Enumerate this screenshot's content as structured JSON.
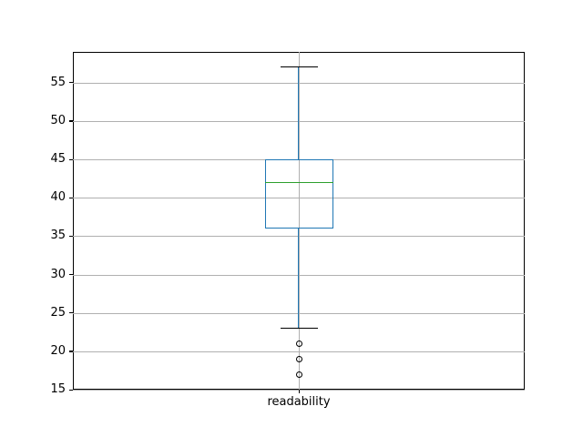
{
  "chart_data": {
    "type": "boxplot",
    "title": "",
    "xlabel": "",
    "ylabel": "",
    "categories": [
      "readability"
    ],
    "yticks": [
      15,
      20,
      25,
      30,
      35,
      40,
      45,
      50,
      55
    ],
    "ylim": [
      15,
      59
    ],
    "grid": true,
    "legend": false,
    "series": [
      {
        "name": "readability",
        "whisker_low": 23,
        "q1": 36,
        "median": 42,
        "q3": 45,
        "whisker_high": 57,
        "outliers": [
          21,
          19,
          17
        ]
      }
    ],
    "colors": {
      "box": "#1f77b4",
      "whisker": "#1f77b4",
      "cap": "#000000",
      "median": "#2ca02c",
      "outlier_edge": "#000000",
      "grid": "#b0b0b0",
      "spine": "#000000",
      "text": "#000000",
      "background": "#ffffff"
    }
  }
}
